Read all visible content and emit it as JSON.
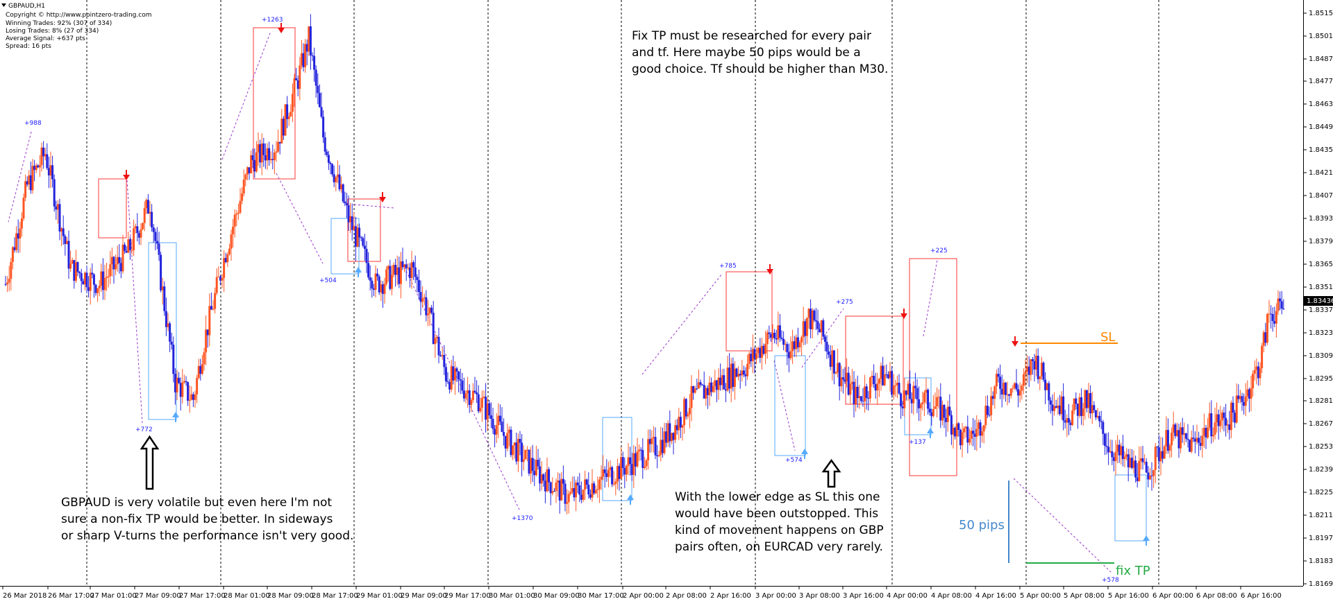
{
  "chart_data": {
    "type": "candlestick",
    "symbol_label": "GBPAUD,H1",
    "info_lines": [
      "Copyright © http://www.pointzero-trading.com",
      "Winning Trades: 92% (307 of 334)",
      "Losing Trades: 8% (27 of 334)",
      "Average Signal: +637 pts",
      "Spread: 16 pts"
    ],
    "ylim": [
      1.8176,
      1.8532
    ],
    "y_ticks": [
      "1.85150",
      "1.85010",
      "1.84870",
      "1.84770",
      "1.84630",
      "1.84490",
      "1.84350",
      "1.84210",
      "1.84070",
      "1.83930",
      "1.83790",
      "1.83650",
      "1.83510",
      "1.83370",
      "1.83230",
      "1.83090",
      "1.82950",
      "1.82810",
      "1.82670",
      "1.82530",
      "1.82390",
      "1.82250",
      "1.82110",
      "1.81970",
      "1.81830",
      "1.81690"
    ],
    "current_price": "1.83436",
    "x_labels": [
      "26 Mar 2018",
      "26 Mar 17:00",
      "27 Mar 01:00",
      "27 Mar 09:00",
      "27 Mar 17:00",
      "28 Mar 01:00",
      "28 Mar 09:00",
      "28 Mar 17:00",
      "29 Mar 01:00",
      "29 Mar 09:00",
      "29 Mar 17:00",
      "30 Mar 01:00",
      "30 Mar 09:00",
      "30 Mar 17:00",
      "2 Apr 00:00",
      "2 Apr 08:00",
      "2 Apr 16:00",
      "3 Apr 00:00",
      "3 Apr 08:00",
      "3 Apr 16:00",
      "4 Apr 00:00",
      "4 Apr 08:00",
      "4 Apr 16:00",
      "5 Apr 00:00",
      "5 Apr 08:00",
      "5 Apr 16:00",
      "6 Apr 00:00",
      "6 Apr 08:00",
      "6 Apr 16:00"
    ],
    "colors": {
      "bull": "#ff5522",
      "bear": "#2222dd",
      "sell_box": "#ff3333",
      "buy_box": "#55aaff",
      "sl": "#ff8800",
      "tp": "#22aa44",
      "pips": "#4488cc",
      "profit": "#1a1aff"
    },
    "price_path": [
      [
        0,
        1.836
      ],
      [
        12,
        1.842
      ],
      [
        22,
        1.844
      ],
      [
        36,
        1.837
      ],
      [
        52,
        1.836
      ],
      [
        68,
        1.838
      ],
      [
        80,
        1.841
      ],
      [
        94,
        1.83
      ],
      [
        104,
        1.829
      ],
      [
        110,
        1.8325
      ],
      [
        122,
        1.838
      ],
      [
        136,
        1.8435
      ],
      [
        150,
        1.8445
      ],
      [
        162,
        1.8485
      ],
      [
        168,
        1.851
      ],
      [
        176,
        1.845
      ],
      [
        190,
        1.84
      ],
      [
        205,
        1.836
      ],
      [
        225,
        1.837
      ],
      [
        232,
        1.835
      ],
      [
        244,
        1.8305
      ],
      [
        262,
        1.829
      ],
      [
        278,
        1.8265
      ],
      [
        295,
        1.8245
      ],
      [
        312,
        1.823
      ],
      [
        328,
        1.824
      ],
      [
        345,
        1.825
      ],
      [
        362,
        1.8262
      ],
      [
        372,
        1.8275
      ],
      [
        380,
        1.829
      ],
      [
        395,
        1.83
      ],
      [
        410,
        1.831
      ],
      [
        425,
        1.833
      ],
      [
        435,
        1.832
      ],
      [
        445,
        1.834
      ],
      [
        452,
        1.833
      ],
      [
        462,
        1.8305
      ],
      [
        472,
        1.829
      ],
      [
        480,
        1.83
      ],
      [
        488,
        1.8305
      ],
      [
        496,
        1.8292
      ],
      [
        508,
        1.829
      ],
      [
        522,
        1.828
      ],
      [
        530,
        1.8265
      ],
      [
        538,
        1.827
      ],
      [
        550,
        1.83
      ],
      [
        562,
        1.8295
      ],
      [
        570,
        1.8315
      ],
      [
        580,
        1.829
      ],
      [
        590,
        1.828
      ],
      [
        598,
        1.829
      ],
      [
        612,
        1.826
      ],
      [
        622,
        1.825
      ],
      [
        632,
        1.8245
      ],
      [
        645,
        1.8268
      ],
      [
        658,
        1.8262
      ],
      [
        668,
        1.8275
      ],
      [
        678,
        1.8278
      ],
      [
        688,
        1.8295
      ],
      [
        695,
        1.8312
      ],
      [
        700,
        1.8342
      ],
      [
        709,
        1.8345
      ]
    ],
    "profit_labels": [
      "+988",
      "+772",
      "+1263",
      "+504",
      "+1370",
      "+785",
      "+574",
      "+275",
      "+137",
      "+225",
      "+578"
    ],
    "annotations": {
      "fix_tp_note": [
        "Fix TP must be researched for every pair",
        "and tf. Here maybe 50 pips would be a",
        "good choice. Tf should be higher than M30."
      ],
      "gbpaud_note": [
        "GBPAUD is very volatile but even here I'm not",
        "sure a non-fix TP would be better. In sideways",
        "or sharp V-turns the performance isn't very good."
      ],
      "lower_edge_note": [
        "With the lower edge as SL this one",
        "would have been outstopped. This",
        "kind of movement happens on GBP",
        "pairs often, on EURCAD very rarely."
      ],
      "sl_label": "SL",
      "pips_label": "50 pips",
      "fix_tp_label": "fix TP"
    }
  }
}
